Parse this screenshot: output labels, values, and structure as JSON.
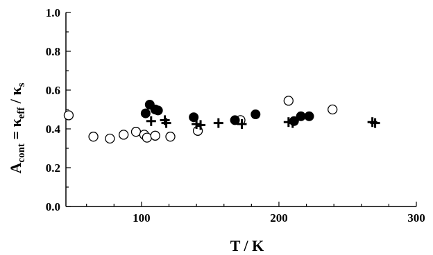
{
  "chart_data": {
    "type": "scatter",
    "xlabel": "T / K",
    "ylabel": "A_cont = κ_eff / κ_s",
    "ylabel_parts": {
      "A": "A",
      "cont": "cont",
      "eq": " = κ",
      "eff": "eff",
      "slash": " / κ",
      "s": "s"
    },
    "xlim": [
      45,
      300
    ],
    "ylim": [
      0.0,
      1.0
    ],
    "xticks": [
      100,
      200,
      300
    ],
    "yticks": [
      0.0,
      0.2,
      0.4,
      0.6,
      0.8,
      1.0
    ],
    "ytick_labels": [
      "0.0",
      "0.2",
      "0.4",
      "0.6",
      "0.8",
      "1.0"
    ],
    "grid": false,
    "series": [
      {
        "marker": "open-circle",
        "points": [
          [
            47,
            0.47
          ],
          [
            65,
            0.36
          ],
          [
            77,
            0.35
          ],
          [
            87,
            0.37
          ],
          [
            96,
            0.385
          ],
          [
            102,
            0.37
          ],
          [
            104,
            0.355
          ],
          [
            110,
            0.365
          ],
          [
            121,
            0.36
          ],
          [
            141,
            0.39
          ],
          [
            172,
            0.445
          ],
          [
            207,
            0.545
          ],
          [
            239,
            0.5
          ]
        ]
      },
      {
        "marker": "filled-circle",
        "points": [
          [
            103,
            0.48
          ],
          [
            106,
            0.525
          ],
          [
            110,
            0.5
          ],
          [
            112,
            0.495
          ],
          [
            138,
            0.46
          ],
          [
            168,
            0.445
          ],
          [
            183,
            0.475
          ],
          [
            211,
            0.44
          ],
          [
            216,
            0.465
          ],
          [
            222,
            0.465
          ]
        ]
      },
      {
        "marker": "plus",
        "points": [
          [
            107,
            0.44
          ],
          [
            117,
            0.445
          ],
          [
            118,
            0.43
          ],
          [
            140,
            0.425
          ],
          [
            143,
            0.42
          ],
          [
            156,
            0.43
          ],
          [
            173,
            0.425
          ],
          [
            207,
            0.435
          ],
          [
            210,
            0.43
          ],
          [
            268,
            0.435
          ],
          [
            270,
            0.43
          ]
        ]
      }
    ]
  }
}
